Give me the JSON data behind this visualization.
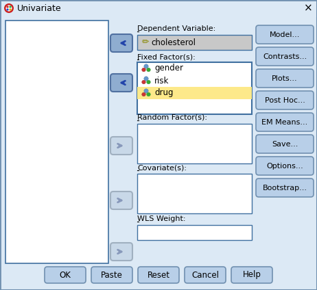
{
  "title": "Univariate",
  "bg_color": "#dce9f5",
  "button_bg": "#b8cfe8",
  "button_border": "#7090b0",
  "arrow_active_bg": "#8fadd0",
  "arrow_active_border": "#5070a0",
  "arrow_inactive_bg": "#c8d8e8",
  "arrow_inactive_border": "#a0b0c0",
  "box_border": "#4070a0",
  "dep_box_bg": "#c8c8c8",
  "drug_highlight": "#fde98a",
  "dependent_label": "Dependent Variable:",
  "dependent_value": "cholesterol",
  "fixed_label": "Fixed Factor(s):",
  "fixed_items": [
    "gender",
    "risk",
    "drug"
  ],
  "random_label": "Random Factor(s):",
  "covariate_label": "Covariate(s):",
  "wls_label": "WLS Weight:",
  "right_buttons": [
    "Model...",
    "Contrasts...",
    "Plots...",
    "Post Hoc...",
    "EM Means...",
    "Save...",
    "Options...",
    "Bootstrap..."
  ],
  "bottom_buttons": [
    "OK",
    "Paste",
    "Reset",
    "Cancel",
    "Help"
  ],
  "icon_colors": [
    [
      "#cc2222",
      "#2244cc"
    ],
    [
      "#22aa44",
      "#ddaa00"
    ]
  ],
  "ball_blue": "#6699cc",
  "ball_red": "#cc3333",
  "ball_green": "#33aa33"
}
